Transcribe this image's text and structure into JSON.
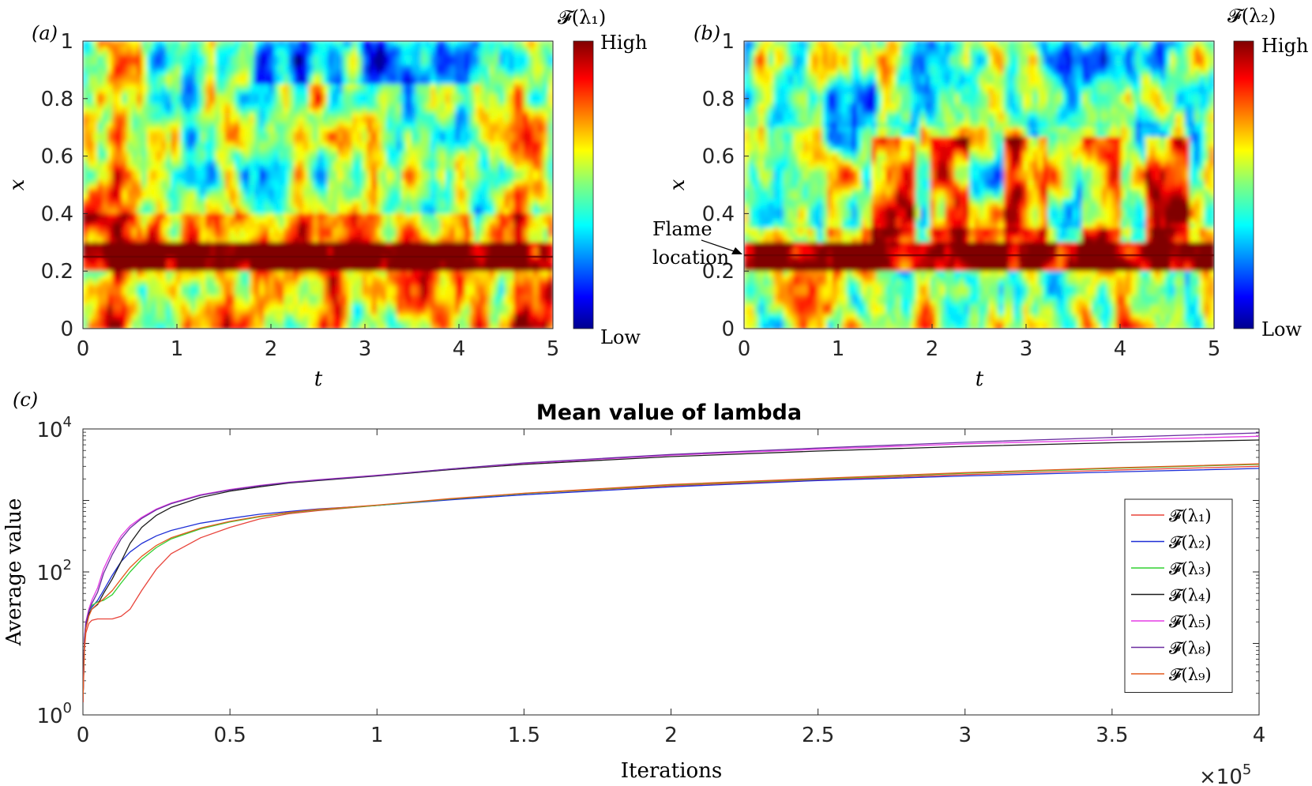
{
  "chart_data": [
    {
      "id": "a",
      "type": "heatmap",
      "panel_label": "(a)",
      "xlabel": "t",
      "ylabel": "x",
      "xlim": [
        0,
        5
      ],
      "ylim": [
        0,
        1
      ],
      "xticks": [
        "0",
        "1",
        "2",
        "3",
        "4",
        "5"
      ],
      "yticks": [
        "0",
        "0.2",
        "0.4",
        "0.6",
        "0.8",
        "1"
      ],
      "colorbar_title": "𝓕(λ₁)",
      "colorbar_high": "High",
      "colorbar_low": "Low",
      "colormap": "jet",
      "flame_location_x": 0.25
    },
    {
      "id": "b",
      "type": "heatmap",
      "panel_label": "(b)",
      "xlabel": "t",
      "ylabel": "x",
      "xlim": [
        0,
        5
      ],
      "ylim": [
        0,
        1
      ],
      "xticks": [
        "0",
        "1",
        "2",
        "3",
        "4",
        "5"
      ],
      "yticks": [
        "0",
        "0.2",
        "0.4",
        "0.6",
        "0.8",
        "1"
      ],
      "colorbar_title": "𝓕(λ₂)",
      "colorbar_high": "High",
      "colorbar_low": "Low",
      "colormap": "jet",
      "flame_location_x": 0.255,
      "annotation": {
        "line1": "Flame",
        "line2": "location"
      }
    },
    {
      "id": "c",
      "type": "line",
      "panel_label": "(c)",
      "title": "Mean value of lambda",
      "xlabel": "Iterations",
      "ylabel": "Average value",
      "x_multiplier_base": "×10",
      "x_multiplier_exp": "5",
      "xlim": [
        0,
        4
      ],
      "y_log": true,
      "ylim_exp": [
        0,
        4
      ],
      "xticks": [
        "0",
        "0.5",
        "1",
        "1.5",
        "2",
        "2.5",
        "3",
        "3.5",
        "4"
      ],
      "yticks": [
        {
          "base": "10",
          "exp": "0"
        },
        {
          "base": "10",
          "exp": "2"
        },
        {
          "base": "10",
          "exp": "4"
        }
      ],
      "x": [
        0,
        0.005,
        0.01,
        0.02,
        0.03,
        0.05,
        0.07,
        0.1,
        0.13,
        0.16,
        0.2,
        0.25,
        0.3,
        0.4,
        0.5,
        0.6,
        0.7,
        0.8,
        1.0,
        1.25,
        1.5,
        2.0,
        2.5,
        3.0,
        3.5,
        4.0
      ],
      "series": [
        {
          "name": "𝓕(λ₁)",
          "color": "#e8433a",
          "values": [
            1.5,
            8,
            14,
            19,
            21,
            22,
            22,
            22,
            24,
            30,
            55,
            110,
            180,
            300,
            420,
            550,
            650,
            720,
            850,
            1050,
            1250,
            1600,
            1950,
            2300,
            2650,
            3000
          ]
        },
        {
          "name": "𝓕(λ₂)",
          "color": "#1f2fd6",
          "values": [
            1.5,
            12,
            20,
            28,
            32,
            40,
            55,
            90,
            140,
            190,
            250,
            320,
            380,
            480,
            560,
            640,
            700,
            760,
            850,
            1020,
            1200,
            1550,
            1900,
            2200,
            2500,
            2800
          ]
        },
        {
          "name": "𝓕(λ₃)",
          "color": "#32d132",
          "values": [
            1.5,
            10,
            18,
            28,
            34,
            38,
            40,
            48,
            70,
            100,
            150,
            220,
            290,
            400,
            500,
            590,
            670,
            740,
            850,
            1050,
            1250,
            1650,
            2000,
            2400,
            2800,
            3200
          ]
        },
        {
          "name": "𝓕(λ₄)",
          "color": "#1b1b1b",
          "values": [
            1.5,
            11,
            18,
            26,
            30,
            35,
            50,
            80,
            140,
            250,
            420,
            620,
            800,
            1100,
            1350,
            1550,
            1750,
            1900,
            2200,
            2700,
            3200,
            4100,
            4900,
            5700,
            6400,
            7000
          ]
        },
        {
          "name": "𝓕(λ₅)",
          "color": "#e53be5",
          "values": [
            1.5,
            11,
            20,
            30,
            40,
            60,
            110,
            200,
            320,
            440,
            580,
            760,
            920,
            1200,
            1420,
            1620,
            1800,
            1950,
            2250,
            2750,
            3300,
            4300,
            5200,
            6200,
            7000,
            7900
          ]
        },
        {
          "name": "𝓕(λ₈)",
          "color": "#6b2da0",
          "values": [
            1.5,
            11,
            19,
            28,
            36,
            52,
            95,
            175,
            290,
            410,
            560,
            740,
            900,
            1180,
            1400,
            1600,
            1780,
            1930,
            2230,
            2750,
            3350,
            4400,
            5400,
            6500,
            7600,
            8800
          ]
        },
        {
          "name": "𝓕(λ₉)",
          "color": "#e35a1e",
          "values": [
            1.5,
            9,
            16,
            24,
            30,
            36,
            42,
            55,
            80,
            115,
            165,
            235,
            300,
            410,
            510,
            600,
            680,
            750,
            860,
            1060,
            1260,
            1670,
            2030,
            2450,
            2850,
            3250
          ]
        }
      ]
    }
  ]
}
